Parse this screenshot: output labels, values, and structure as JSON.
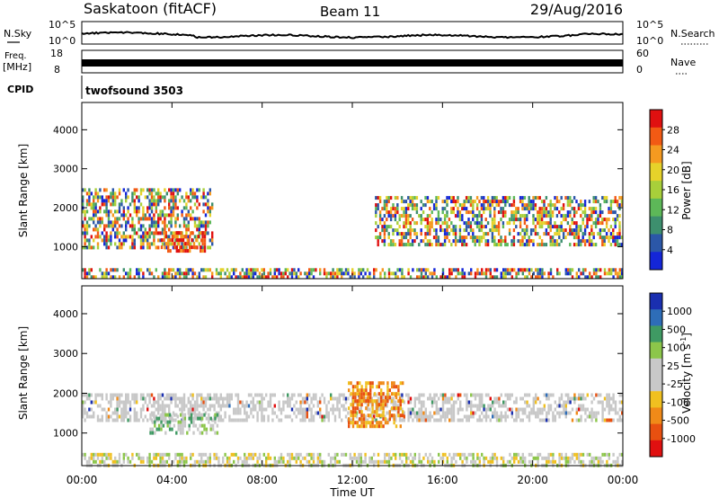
{
  "header": {
    "station": "Saskatoon (fitACF)",
    "beam": "Beam 11",
    "date": "29/Aug/2016"
  },
  "top_panels": {
    "nsky_label": "N.Sky",
    "nsky_ticks": [
      "10^5",
      "10^0"
    ],
    "nsearch_label": "N.Search",
    "nsearch_ticks": [
      "10^5",
      "10^0"
    ],
    "freq_label_line1": "Freq.",
    "freq_label_line2": "[MHz]",
    "freq_ticks": [
      "18",
      "8"
    ],
    "nave_label": "Nave",
    "nave_ticks": [
      "60",
      "0"
    ],
    "cpid_label": "CPID",
    "cpid_value": "twofsound 3503"
  },
  "chart_data": [
    {
      "type": "heatmap",
      "name": "power",
      "ylabel": "Slant Range [km]",
      "yticks": [
        1000,
        2000,
        3000,
        4000
      ],
      "ylim": [
        180,
        4700
      ],
      "xlim_hours": [
        0,
        24
      ],
      "colorbar_label": "Power [dB]",
      "colorbar_ticks": [
        "28",
        "24",
        "20",
        "16",
        "12",
        "8",
        "4"
      ],
      "colorbar_colors": [
        "#e01010",
        "#f25a14",
        "#f59a20",
        "#e6d22a",
        "#a8cf3a",
        "#5db858",
        "#3d8f6e",
        "#2b57a8",
        "#1426d8"
      ],
      "scatter_regions": [
        {
          "x": [
            0,
            5.8
          ],
          "y": [
            1000,
            2500
          ],
          "level": "mixed-high"
        },
        {
          "x": [
            3.5,
            5.5
          ],
          "y": [
            900,
            1400
          ],
          "level": "high"
        },
        {
          "x": [
            13,
            24
          ],
          "y": [
            1100,
            2300
          ],
          "level": "mixed"
        },
        {
          "x": [
            0,
            24
          ],
          "y": [
            200,
            450
          ],
          "level": "mixed-low"
        }
      ]
    },
    {
      "type": "heatmap",
      "name": "velocity",
      "ylabel": "Slant Range [km]",
      "yticks": [
        1000,
        2000,
        3000,
        4000
      ],
      "ylim": [
        180,
        4700
      ],
      "xlim_hours": [
        0,
        24
      ],
      "xticks": [
        "00:00",
        "04:00",
        "08:00",
        "12:00",
        "16:00",
        "20:00",
        "00:00"
      ],
      "xlabel": "Time UT",
      "colorbar_label": "Velocity [m s",
      "colorbar_label_sup": "-1",
      "colorbar_label_end": "]",
      "colorbar_ticks": [
        "1000",
        "500",
        "100",
        "25",
        "-25",
        "-100",
        "-500",
        "-1000"
      ],
      "colorbar_colors": [
        "#1a2fb0",
        "#2e6db8",
        "#3f9a63",
        "#8cc64a",
        "#c8c8c8",
        "#c8c8c8",
        "#f0c020",
        "#f08a18",
        "#e85010",
        "#e01010"
      ],
      "scatter_regions": [
        {
          "x": [
            0,
            24
          ],
          "y": [
            1300,
            2000
          ],
          "level": "ground-scatter"
        },
        {
          "x": [
            3,
            6
          ],
          "y": [
            1000,
            1500
          ],
          "level": "slow"
        },
        {
          "x": [
            11.8,
            14.2
          ],
          "y": [
            1200,
            2300
          ],
          "level": "away"
        },
        {
          "x": [
            0,
            24
          ],
          "y": [
            200,
            500
          ],
          "level": "low"
        }
      ]
    }
  ]
}
